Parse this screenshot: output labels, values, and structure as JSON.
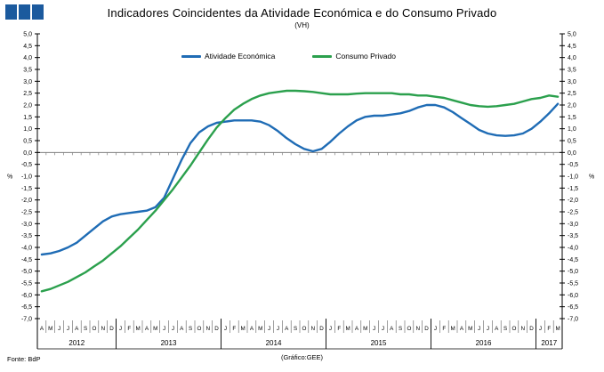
{
  "header": {
    "square_color": "#1b5a9e",
    "squares": 3,
    "title": "Indicadores Coincidentes da Atividade Económica e do Consumo Privado",
    "subtitle": "(VH)"
  },
  "legend": {
    "items": [
      {
        "label": "Atividade Económica",
        "color": "#1f6cb5"
      },
      {
        "label": "Consumo Privado",
        "color": "#2ba04d"
      }
    ]
  },
  "footer": {
    "source": "Fonte: BdP",
    "credit": "(Gráfico:GEE)"
  },
  "chart_data": {
    "type": "line",
    "title": "Indicadores Coincidentes da Atividade Económica e do Consumo Privado",
    "subtitle": "(VH)",
    "ylabel": "%",
    "ylim": [
      -7.0,
      5.0
    ],
    "ytick_step": 0.5,
    "ytick_labels": [
      "5,0",
      "4,5",
      "4,0",
      "3,5",
      "3,0",
      "2,5",
      "2,0",
      "1,5",
      "1,0",
      "0,5",
      "0,0",
      "-0,5",
      "-1,0",
      "-1,5",
      "-2,0",
      "-2,5",
      "-3,0",
      "-3,5",
      "-4,0",
      "-4,5",
      "-5,0",
      "-5,5",
      "-6,0",
      "-6,5",
      "-7,0"
    ],
    "percent_label": "%",
    "percent_at_label": "-1,0",
    "grid": false,
    "legend_position": "top",
    "x_months": [
      "A",
      "M",
      "J",
      "J",
      "A",
      "S",
      "O",
      "N",
      "D",
      "J",
      "F",
      "M",
      "A",
      "M",
      "J",
      "J",
      "A",
      "S",
      "O",
      "N",
      "D",
      "J",
      "F",
      "M",
      "A",
      "M",
      "J",
      "J",
      "A",
      "S",
      "O",
      "N",
      "D",
      "J",
      "F",
      "M",
      "A",
      "M",
      "J",
      "J",
      "A",
      "S",
      "O",
      "N",
      "D",
      "J",
      "F",
      "M",
      "A",
      "M",
      "J",
      "J",
      "A",
      "S",
      "O",
      "N",
      "D",
      "J",
      "F",
      "M"
    ],
    "years": [
      {
        "label": "2012",
        "months": 9
      },
      {
        "label": "2013",
        "months": 12
      },
      {
        "label": "2014",
        "months": 12
      },
      {
        "label": "2015",
        "months": 12
      },
      {
        "label": "2016",
        "months": 12
      },
      {
        "label": "2017",
        "months": 3
      }
    ],
    "x_range_note": "monthly, Apr 2012 - Mar 2017",
    "series": [
      {
        "name": "Atividade Económica",
        "color": "#1f6cb5",
        "values": [
          -4.3,
          -4.25,
          -4.15,
          -4.0,
          -3.8,
          -3.5,
          -3.2,
          -2.9,
          -2.7,
          -2.6,
          -2.55,
          -2.5,
          -2.45,
          -2.3,
          -1.9,
          -1.1,
          -0.3,
          0.4,
          0.85,
          1.1,
          1.25,
          1.3,
          1.35,
          1.35,
          1.35,
          1.3,
          1.15,
          0.9,
          0.6,
          0.35,
          0.15,
          0.05,
          0.15,
          0.45,
          0.8,
          1.1,
          1.35,
          1.5,
          1.55,
          1.55,
          1.6,
          1.65,
          1.75,
          1.9,
          2.0,
          2.0,
          1.9,
          1.7,
          1.45,
          1.2,
          0.95,
          0.8,
          0.72,
          0.7,
          0.72,
          0.8,
          1.0,
          1.3,
          1.65,
          2.05
        ]
      },
      {
        "name": "Consumo Privado",
        "color": "#2ba04d",
        "values": [
          -5.85,
          -5.75,
          -5.6,
          -5.45,
          -5.25,
          -5.05,
          -4.8,
          -4.55,
          -4.25,
          -3.95,
          -3.6,
          -3.25,
          -2.85,
          -2.45,
          -2.0,
          -1.55,
          -1.05,
          -0.55,
          0.0,
          0.55,
          1.05,
          1.45,
          1.8,
          2.05,
          2.25,
          2.4,
          2.5,
          2.55,
          2.6,
          2.6,
          2.58,
          2.55,
          2.5,
          2.45,
          2.45,
          2.45,
          2.48,
          2.5,
          2.5,
          2.5,
          2.5,
          2.45,
          2.45,
          2.4,
          2.4,
          2.35,
          2.3,
          2.2,
          2.1,
          2.0,
          1.95,
          1.93,
          1.95,
          2.0,
          2.05,
          2.15,
          2.25,
          2.3,
          2.4,
          2.35
        ]
      }
    ]
  }
}
